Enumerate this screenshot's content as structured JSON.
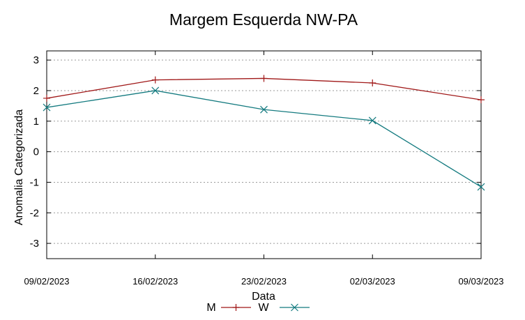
{
  "chart_data": {
    "type": "line",
    "title": "Margem Esquerda NW-PA",
    "xlabel": "Data",
    "ylabel": "Anomalia Categorizada",
    "categories": [
      "09/02/2023",
      "16/02/2023",
      "23/02/2023",
      "02/03/2023",
      "09/03/2023"
    ],
    "yticks": [
      3,
      2,
      1,
      0,
      -1,
      -2,
      -3
    ],
    "ylim": [
      -3.5,
      3.3
    ],
    "grid": true,
    "legend_position": "bottom",
    "series": [
      {
        "name": "M",
        "color": "#a01818",
        "marker": "plus",
        "values": [
          1.75,
          2.35,
          2.4,
          2.25,
          1.7
        ]
      },
      {
        "name": "W",
        "color": "#137a7f",
        "marker": "cross",
        "values": [
          1.45,
          2.0,
          1.38,
          1.02,
          -1.15
        ]
      }
    ]
  }
}
